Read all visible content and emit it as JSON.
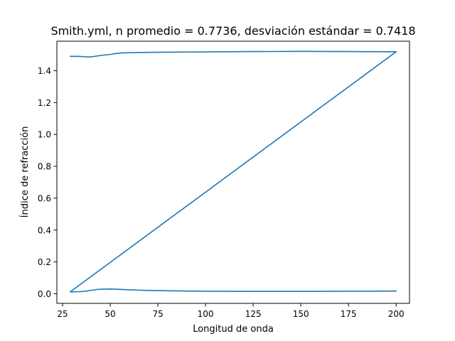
{
  "chart_data": {
    "type": "line",
    "title": "Smith.yml, n promedio = 0.7736, desviación estándar = 0.7418",
    "xlabel": "Longitud de onda",
    "ylabel": "Índice de refracción",
    "xlim": [
      22,
      207
    ],
    "ylim": [
      -0.06,
      1.585
    ],
    "xticks": [
      25,
      50,
      75,
      100,
      125,
      150,
      175,
      200
    ],
    "yticks": [
      0.0,
      0.2,
      0.4,
      0.6,
      0.8,
      1.0,
      1.2,
      1.4
    ],
    "ytick_labels": [
      "0.0",
      "0.2",
      "0.4",
      "0.6",
      "0.8",
      "1.0",
      "1.2",
      "1.4"
    ],
    "grid": false,
    "series": [
      {
        "color": "#1f77b4",
        "x": [
          29,
          33,
          36,
          38,
          40,
          43,
          46,
          50,
          53,
          56,
          60,
          65,
          70,
          80,
          90,
          100,
          125,
          150,
          175,
          200,
          200,
          29,
          33,
          36,
          38,
          40,
          43,
          46,
          50,
          53,
          56,
          60,
          65,
          70,
          80,
          90,
          100,
          125,
          150,
          175,
          200
        ],
        "y": [
          1.49,
          1.49,
          1.488,
          1.486,
          1.487,
          1.492,
          1.497,
          1.502,
          1.508,
          1.511,
          1.513,
          1.514,
          1.515,
          1.516,
          1.517,
          1.518,
          1.52,
          1.521,
          1.52,
          1.519,
          1.519,
          0.012,
          0.013,
          0.015,
          0.018,
          0.022,
          0.027,
          0.029,
          0.03,
          0.029,
          0.027,
          0.025,
          0.023,
          0.021,
          0.019,
          0.017,
          0.016,
          0.015,
          0.015,
          0.016,
          0.017
        ]
      }
    ]
  }
}
